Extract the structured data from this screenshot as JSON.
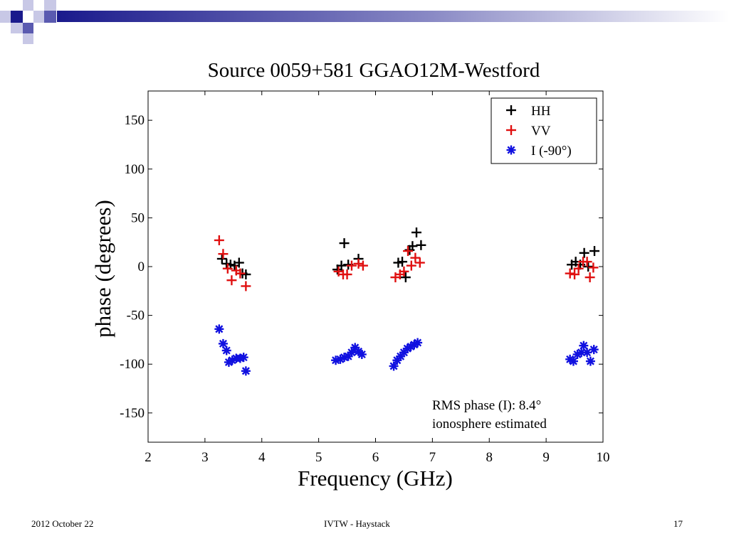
{
  "slide": {
    "footer_left": "2012 October 22",
    "footer_center": "IVTW - Haystack",
    "footer_right": "17",
    "accent_colors": {
      "dark": "#1a1a8c",
      "mid": "#5a5ab0",
      "light": "#c8c8e6"
    }
  },
  "chart_data": {
    "type": "scatter",
    "title": "Source 0059+581 GGAO12M-Westford",
    "xlabel": "Frequency (GHz)",
    "ylabel": "phase (degrees)",
    "xlim": [
      2,
      10
    ],
    "ylim": [
      -180,
      180
    ],
    "xticks": [
      2,
      3,
      4,
      5,
      6,
      7,
      8,
      9,
      10
    ],
    "yticks": [
      -150,
      -100,
      -50,
      0,
      50,
      100,
      150
    ],
    "grid": false,
    "legend_position": "top-right",
    "annotations": [
      "RMS phase (I):  8.4°",
      "ionosphere estimated"
    ],
    "series": [
      {
        "name": "HH",
        "marker": "plus",
        "color": "#000000",
        "points": [
          [
            3.3,
            8
          ],
          [
            3.38,
            3
          ],
          [
            3.45,
            2
          ],
          [
            3.52,
            1
          ],
          [
            3.6,
            4
          ],
          [
            3.66,
            -7
          ],
          [
            3.72,
            -8
          ],
          [
            5.33,
            -3
          ],
          [
            5.4,
            1
          ],
          [
            5.45,
            24
          ],
          [
            5.52,
            2
          ],
          [
            5.7,
            8
          ],
          [
            6.4,
            4
          ],
          [
            6.47,
            5
          ],
          [
            6.53,
            -11
          ],
          [
            6.6,
            17
          ],
          [
            6.65,
            21
          ],
          [
            6.72,
            35
          ],
          [
            6.8,
            22
          ],
          [
            9.45,
            2
          ],
          [
            9.52,
            5
          ],
          [
            9.6,
            2
          ],
          [
            9.67,
            14
          ],
          [
            9.74,
            0
          ],
          [
            9.85,
            16
          ]
        ]
      },
      {
        "name": "VV",
        "marker": "plus",
        "color": "#e01010",
        "points": [
          [
            3.25,
            27
          ],
          [
            3.32,
            13
          ],
          [
            3.4,
            -2
          ],
          [
            3.47,
            -14
          ],
          [
            3.55,
            -4
          ],
          [
            3.62,
            -7
          ],
          [
            3.72,
            -20
          ],
          [
            5.35,
            -5
          ],
          [
            5.43,
            -8
          ],
          [
            5.5,
            -8
          ],
          [
            5.58,
            1
          ],
          [
            5.7,
            3
          ],
          [
            5.78,
            1
          ],
          [
            6.35,
            -11
          ],
          [
            6.43,
            -8
          ],
          [
            6.5,
            -5
          ],
          [
            6.57,
            16
          ],
          [
            6.63,
            1
          ],
          [
            6.7,
            9
          ],
          [
            6.78,
            4
          ],
          [
            9.42,
            -7
          ],
          [
            9.5,
            -8
          ],
          [
            9.57,
            -2
          ],
          [
            9.65,
            5
          ],
          [
            9.72,
            5
          ],
          [
            9.77,
            -11
          ],
          [
            9.83,
            -1
          ]
        ]
      },
      {
        "name": "I  (-90°)",
        "marker": "asterisk",
        "color": "#1010e0",
        "points": [
          [
            3.25,
            -64
          ],
          [
            3.32,
            -79
          ],
          [
            3.38,
            -86
          ],
          [
            3.42,
            -98
          ],
          [
            3.48,
            -96
          ],
          [
            3.55,
            -94
          ],
          [
            3.62,
            -94
          ],
          [
            3.68,
            -93
          ],
          [
            3.72,
            -107
          ],
          [
            5.3,
            -96
          ],
          [
            5.38,
            -95
          ],
          [
            5.45,
            -93
          ],
          [
            5.52,
            -92
          ],
          [
            5.58,
            -88
          ],
          [
            5.64,
            -83
          ],
          [
            5.7,
            -87
          ],
          [
            5.76,
            -90
          ],
          [
            6.32,
            -102
          ],
          [
            6.38,
            -96
          ],
          [
            6.44,
            -92
          ],
          [
            6.5,
            -88
          ],
          [
            6.56,
            -84
          ],
          [
            6.62,
            -82
          ],
          [
            6.68,
            -80
          ],
          [
            6.74,
            -78
          ],
          [
            9.42,
            -95
          ],
          [
            9.48,
            -97
          ],
          [
            9.55,
            -90
          ],
          [
            9.62,
            -88
          ],
          [
            9.66,
            -81
          ],
          [
            9.72,
            -88
          ],
          [
            9.78,
            -97
          ],
          [
            9.84,
            -85
          ]
        ]
      }
    ]
  }
}
